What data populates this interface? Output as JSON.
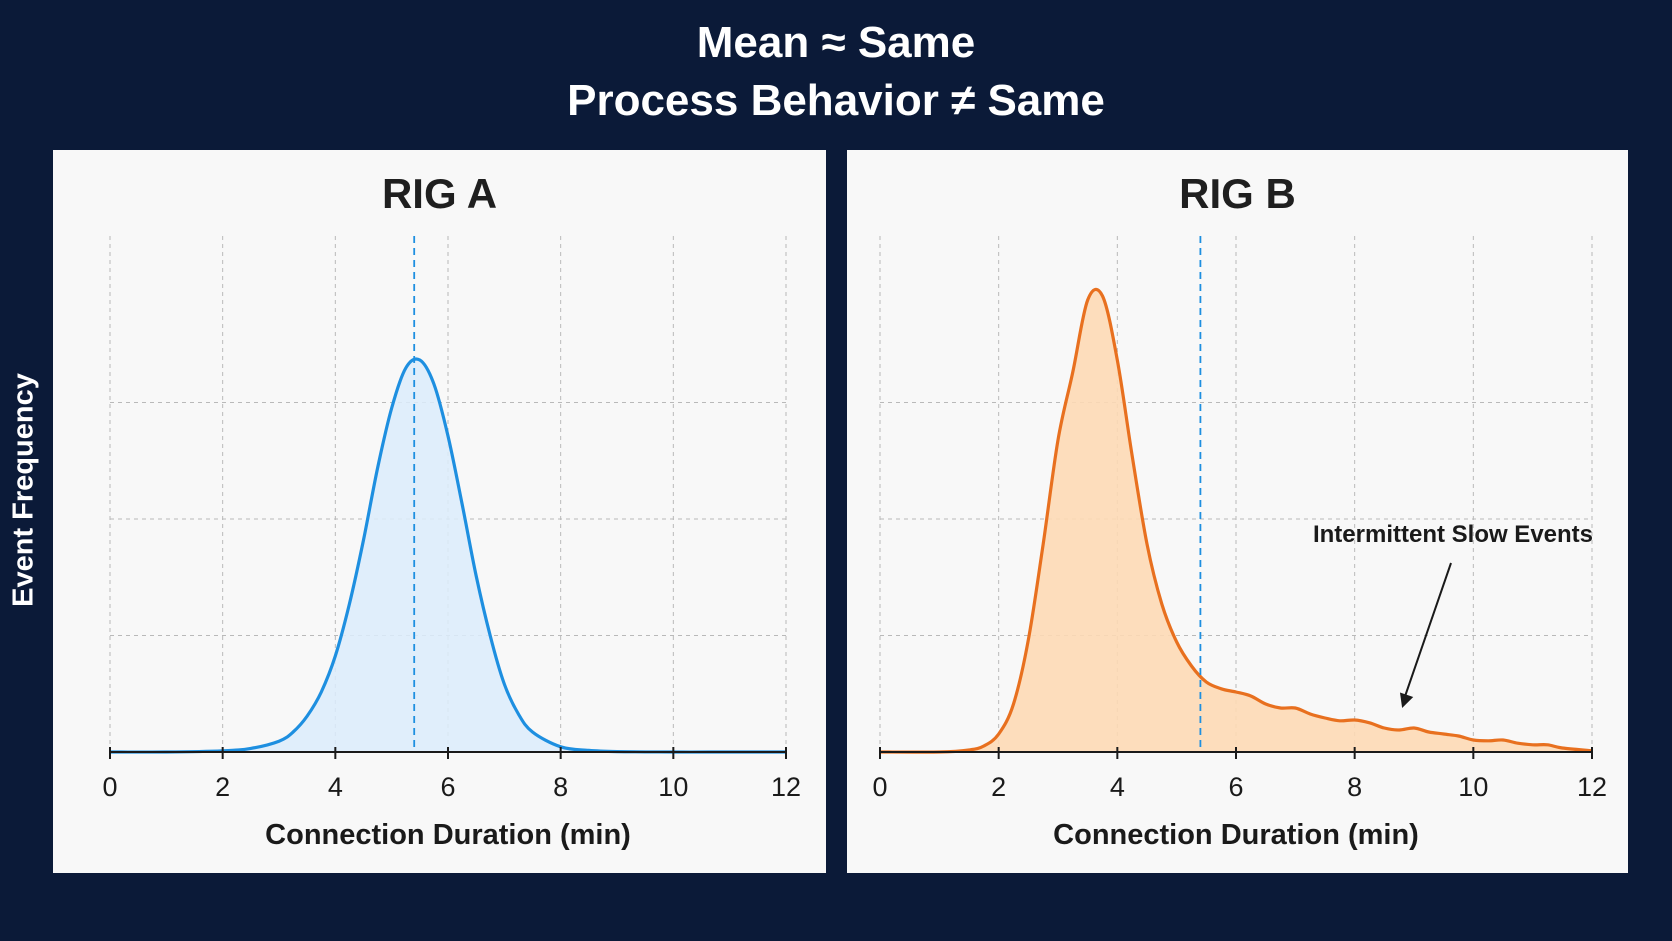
{
  "title": {
    "line1": "Mean ≈ Same",
    "line2": "Process Behavior ≠ Same"
  },
  "y_axis_label": "Event Frequency",
  "colors": {
    "background": "#0b1a38",
    "panel": "#f8f8f8",
    "rig_a_line": "#1e8fe0",
    "rig_a_fill": "#dcecfb",
    "rig_b_line": "#e8701f",
    "rig_b_fill": "#fdd9b5",
    "mean_line": "#1e8fe0",
    "grid": "#b9b9b9"
  },
  "chart_data": [
    {
      "type": "area",
      "title": "RIG A",
      "xlabel": "Connection Duration (min)",
      "ylabel": "Event Frequency",
      "xlim": [
        0,
        12
      ],
      "ylim": [
        0,
        1.0
      ],
      "xticks": [
        "0",
        "2",
        "4",
        "6",
        "8",
        "10",
        "12"
      ],
      "grid": true,
      "mean_line_x": 5.4,
      "series": [
        {
          "x": [
            0,
            1,
            2,
            2.5,
            3,
            3.25,
            3.5,
            3.75,
            4,
            4.25,
            4.5,
            4.75,
            5,
            5.25,
            5.5,
            5.75,
            6,
            6.25,
            6.5,
            6.75,
            7,
            7.25,
            7.5,
            8,
            8.5,
            9,
            10,
            11,
            12
          ],
          "y": [
            0,
            0,
            0.003,
            0.009,
            0.027,
            0.05,
            0.09,
            0.15,
            0.24,
            0.37,
            0.53,
            0.71,
            0.86,
            0.96,
            0.98,
            0.92,
            0.79,
            0.62,
            0.44,
            0.29,
            0.17,
            0.095,
            0.05,
            0.013,
            0.004,
            0.001,
            0,
            0,
            0
          ]
        }
      ]
    },
    {
      "type": "area",
      "title": "RIG B",
      "xlabel": "Connection Duration (min)",
      "ylabel": "Event Frequency",
      "xlim": [
        0,
        12
      ],
      "ylim": [
        0,
        1.0
      ],
      "xticks": [
        "0",
        "2",
        "4",
        "6",
        "8",
        "10",
        "12"
      ],
      "grid": true,
      "mean_line_x": 5.4,
      "annotation": {
        "text": "Intermittent Slow Events",
        "x": 8.8,
        "y": 0.07
      },
      "series": [
        {
          "x": [
            0,
            1,
            1.5,
            1.75,
            2,
            2.25,
            2.5,
            2.75,
            3,
            3.25,
            3.5,
            3.75,
            4,
            4.25,
            4.5,
            4.75,
            5,
            5.25,
            5.5,
            5.75,
            6,
            6.25,
            6.5,
            6.75,
            7,
            7.25,
            7.5,
            7.75,
            8,
            8.25,
            8.5,
            8.75,
            9,
            9.25,
            9.5,
            9.75,
            10,
            10.25,
            10.5,
            10.75,
            11,
            11.25,
            11.5,
            12
          ],
          "y": [
            0,
            0,
            0.005,
            0.015,
            0.045,
            0.12,
            0.28,
            0.52,
            0.78,
            0.95,
            1.13,
            1.14,
            0.98,
            0.74,
            0.52,
            0.37,
            0.275,
            0.215,
            0.175,
            0.158,
            0.15,
            0.14,
            0.12,
            0.11,
            0.11,
            0.095,
            0.085,
            0.078,
            0.08,
            0.073,
            0.06,
            0.055,
            0.06,
            0.05,
            0.045,
            0.04,
            0.03,
            0.028,
            0.03,
            0.022,
            0.018,
            0.018,
            0.01,
            0.003
          ]
        }
      ]
    }
  ]
}
